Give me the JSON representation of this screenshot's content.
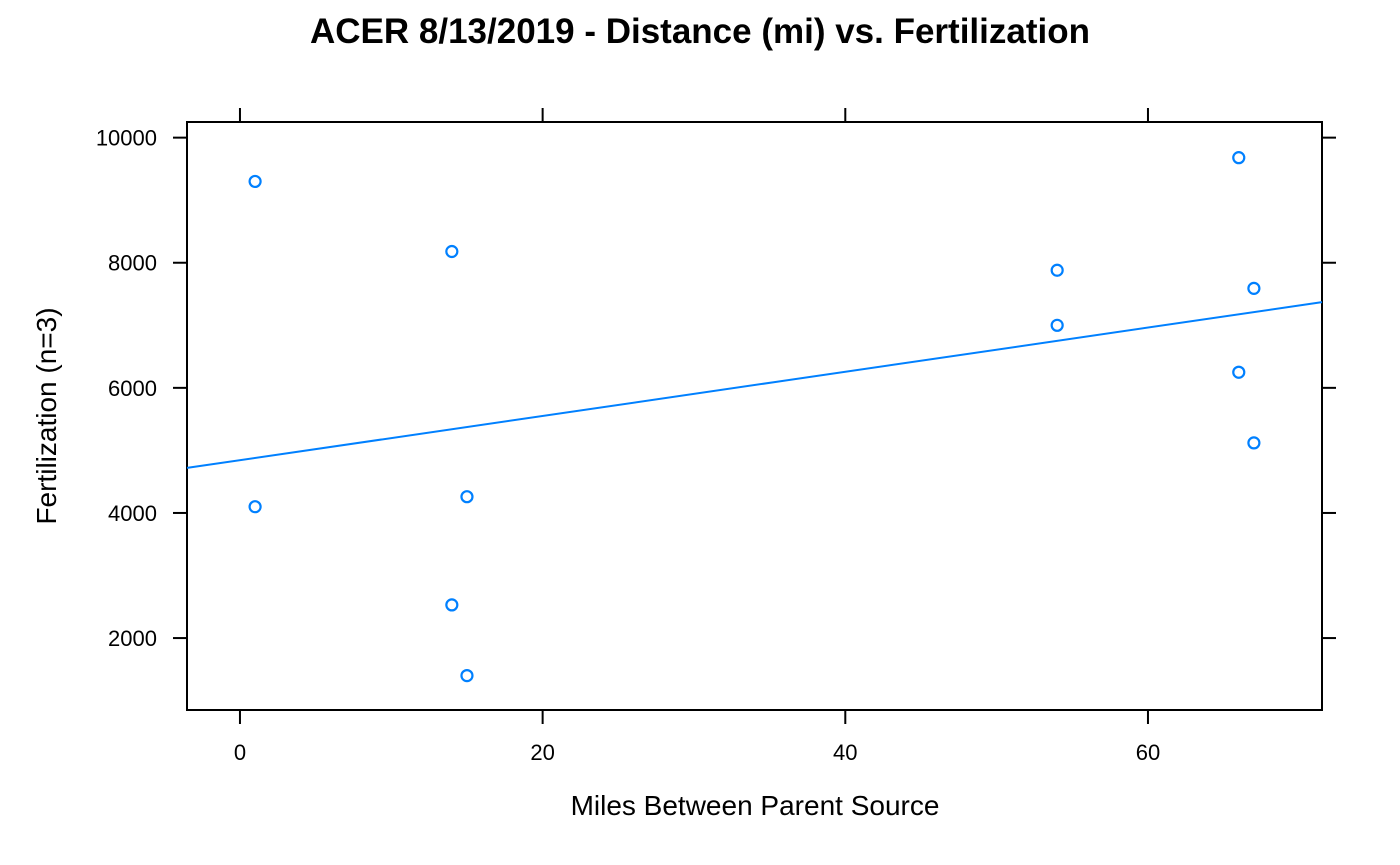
{
  "chart_data": {
    "type": "scatter",
    "title": "ACER 8/13/2019 - Distance (mi) vs. Fertilization",
    "xlabel": "Miles Between Parent Source",
    "ylabel": "Fertilization (n=3)",
    "xlim": [
      -3.5,
      71.5
    ],
    "ylim": [
      850,
      10250
    ],
    "x_ticks": [
      0,
      20,
      40,
      60
    ],
    "y_ticks": [
      2000,
      4000,
      6000,
      8000,
      10000
    ],
    "x_tick_labels": [
      "0",
      "20",
      "40",
      "60"
    ],
    "y_tick_labels": [
      "2000",
      "4000",
      "6000",
      "8000",
      "10000"
    ],
    "grid": false,
    "legend": "none",
    "point_color": "#0080ff",
    "series": [
      {
        "x": [
          1,
          1,
          14,
          14,
          15,
          15,
          54,
          54,
          66,
          66,
          67,
          67
        ],
        "y": [
          9300,
          4100,
          8180,
          2530,
          4260,
          1400,
          7880,
          7000,
          9680,
          6250,
          7590,
          5120
        ]
      }
    ],
    "trend_line": {
      "color": "#0080ff",
      "x": [
        -3.5,
        71.5
      ],
      "y": [
        4720,
        7370
      ]
    }
  }
}
